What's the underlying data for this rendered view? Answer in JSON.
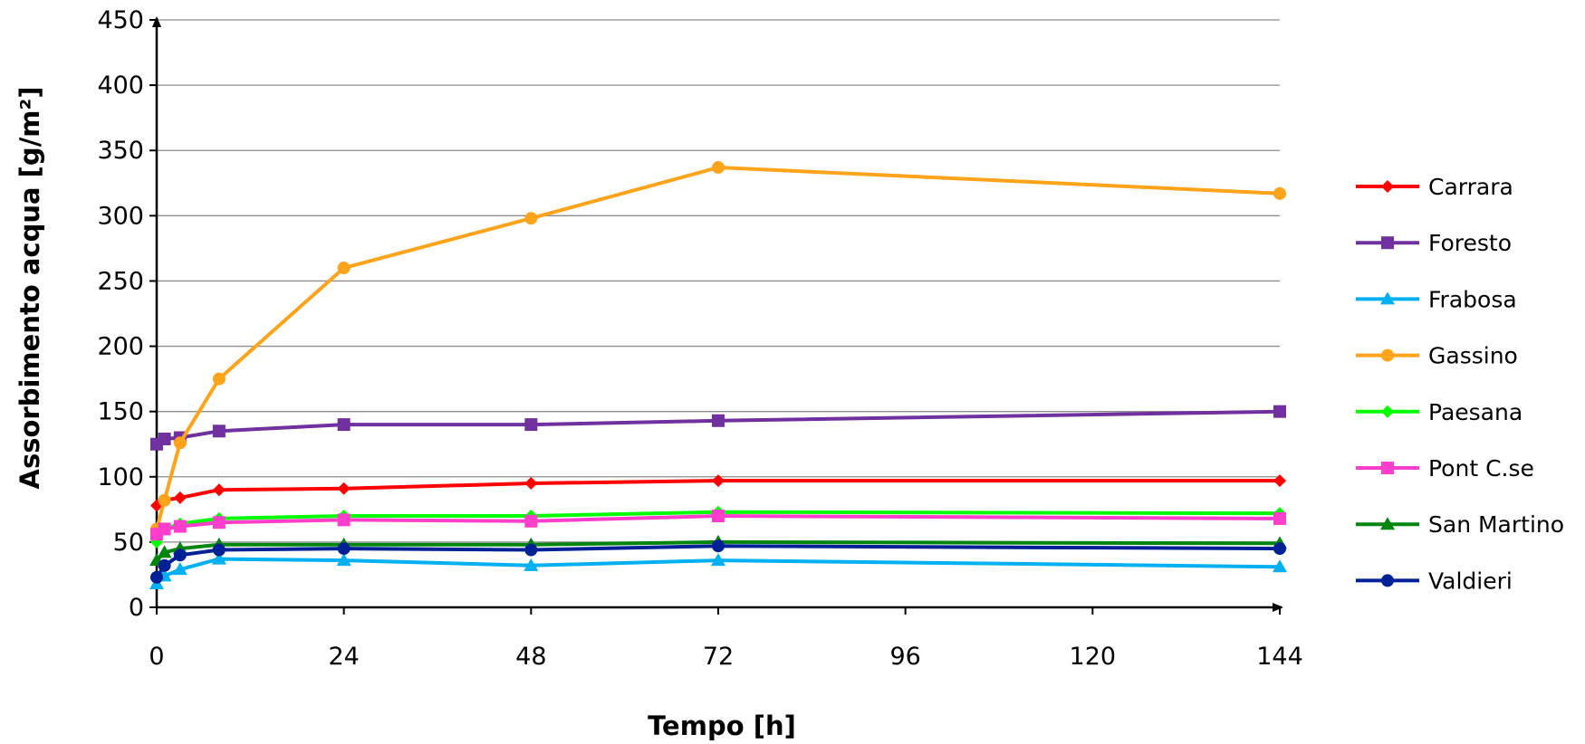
{
  "chart_data": {
    "type": "line",
    "xlabel": "Tempo [h]",
    "ylabel": "Assorbimento acqua [g/m²]",
    "xlim": [
      0,
      144
    ],
    "ylim": [
      0,
      450
    ],
    "xticks": [
      "0",
      "24",
      "48",
      "72",
      "96",
      "120",
      "144"
    ],
    "yticks": [
      "0",
      "50",
      "100",
      "150",
      "200",
      "250",
      "300",
      "350",
      "400",
      "450"
    ],
    "grid": "horizontal",
    "legend_position": "right",
    "x": [
      0,
      1,
      3,
      8,
      24,
      48,
      72,
      144
    ],
    "series": [
      {
        "name": "Carrara",
        "color": "#ff0000",
        "marker": "diamond",
        "values": [
          78,
          82,
          84,
          90,
          91,
          95,
          97,
          97
        ]
      },
      {
        "name": "Foresto",
        "color": "#7030a0",
        "marker": "square",
        "values": [
          125,
          129,
          130,
          135,
          140,
          140,
          143,
          150
        ]
      },
      {
        "name": "Frabosa",
        "color": "#00b0f0",
        "marker": "triangle",
        "values": [
          18,
          24,
          29,
          37,
          36,
          32,
          36,
          31
        ]
      },
      {
        "name": "Gassino",
        "color": "#ffa31a",
        "marker": "circle",
        "values": [
          60,
          82,
          126,
          175,
          260,
          298,
          337,
          317
        ]
      },
      {
        "name": "Paesana",
        "color": "#00ff00",
        "marker": "diamond",
        "values": [
          50,
          60,
          64,
          68,
          70,
          70,
          73,
          72
        ]
      },
      {
        "name": "Pont C.se",
        "color": "#ff3fcc",
        "marker": "square",
        "values": [
          56,
          60,
          62,
          65,
          67,
          66,
          70,
          68
        ]
      },
      {
        "name": "San Martino",
        "color": "#00850f",
        "marker": "triangle",
        "values": [
          36,
          42,
          45,
          48,
          48,
          48,
          50,
          49
        ]
      },
      {
        "name": "Valdieri",
        "color": "#002196",
        "marker": "circle",
        "values": [
          23,
          32,
          40,
          44,
          45,
          44,
          47,
          45
        ]
      }
    ]
  }
}
